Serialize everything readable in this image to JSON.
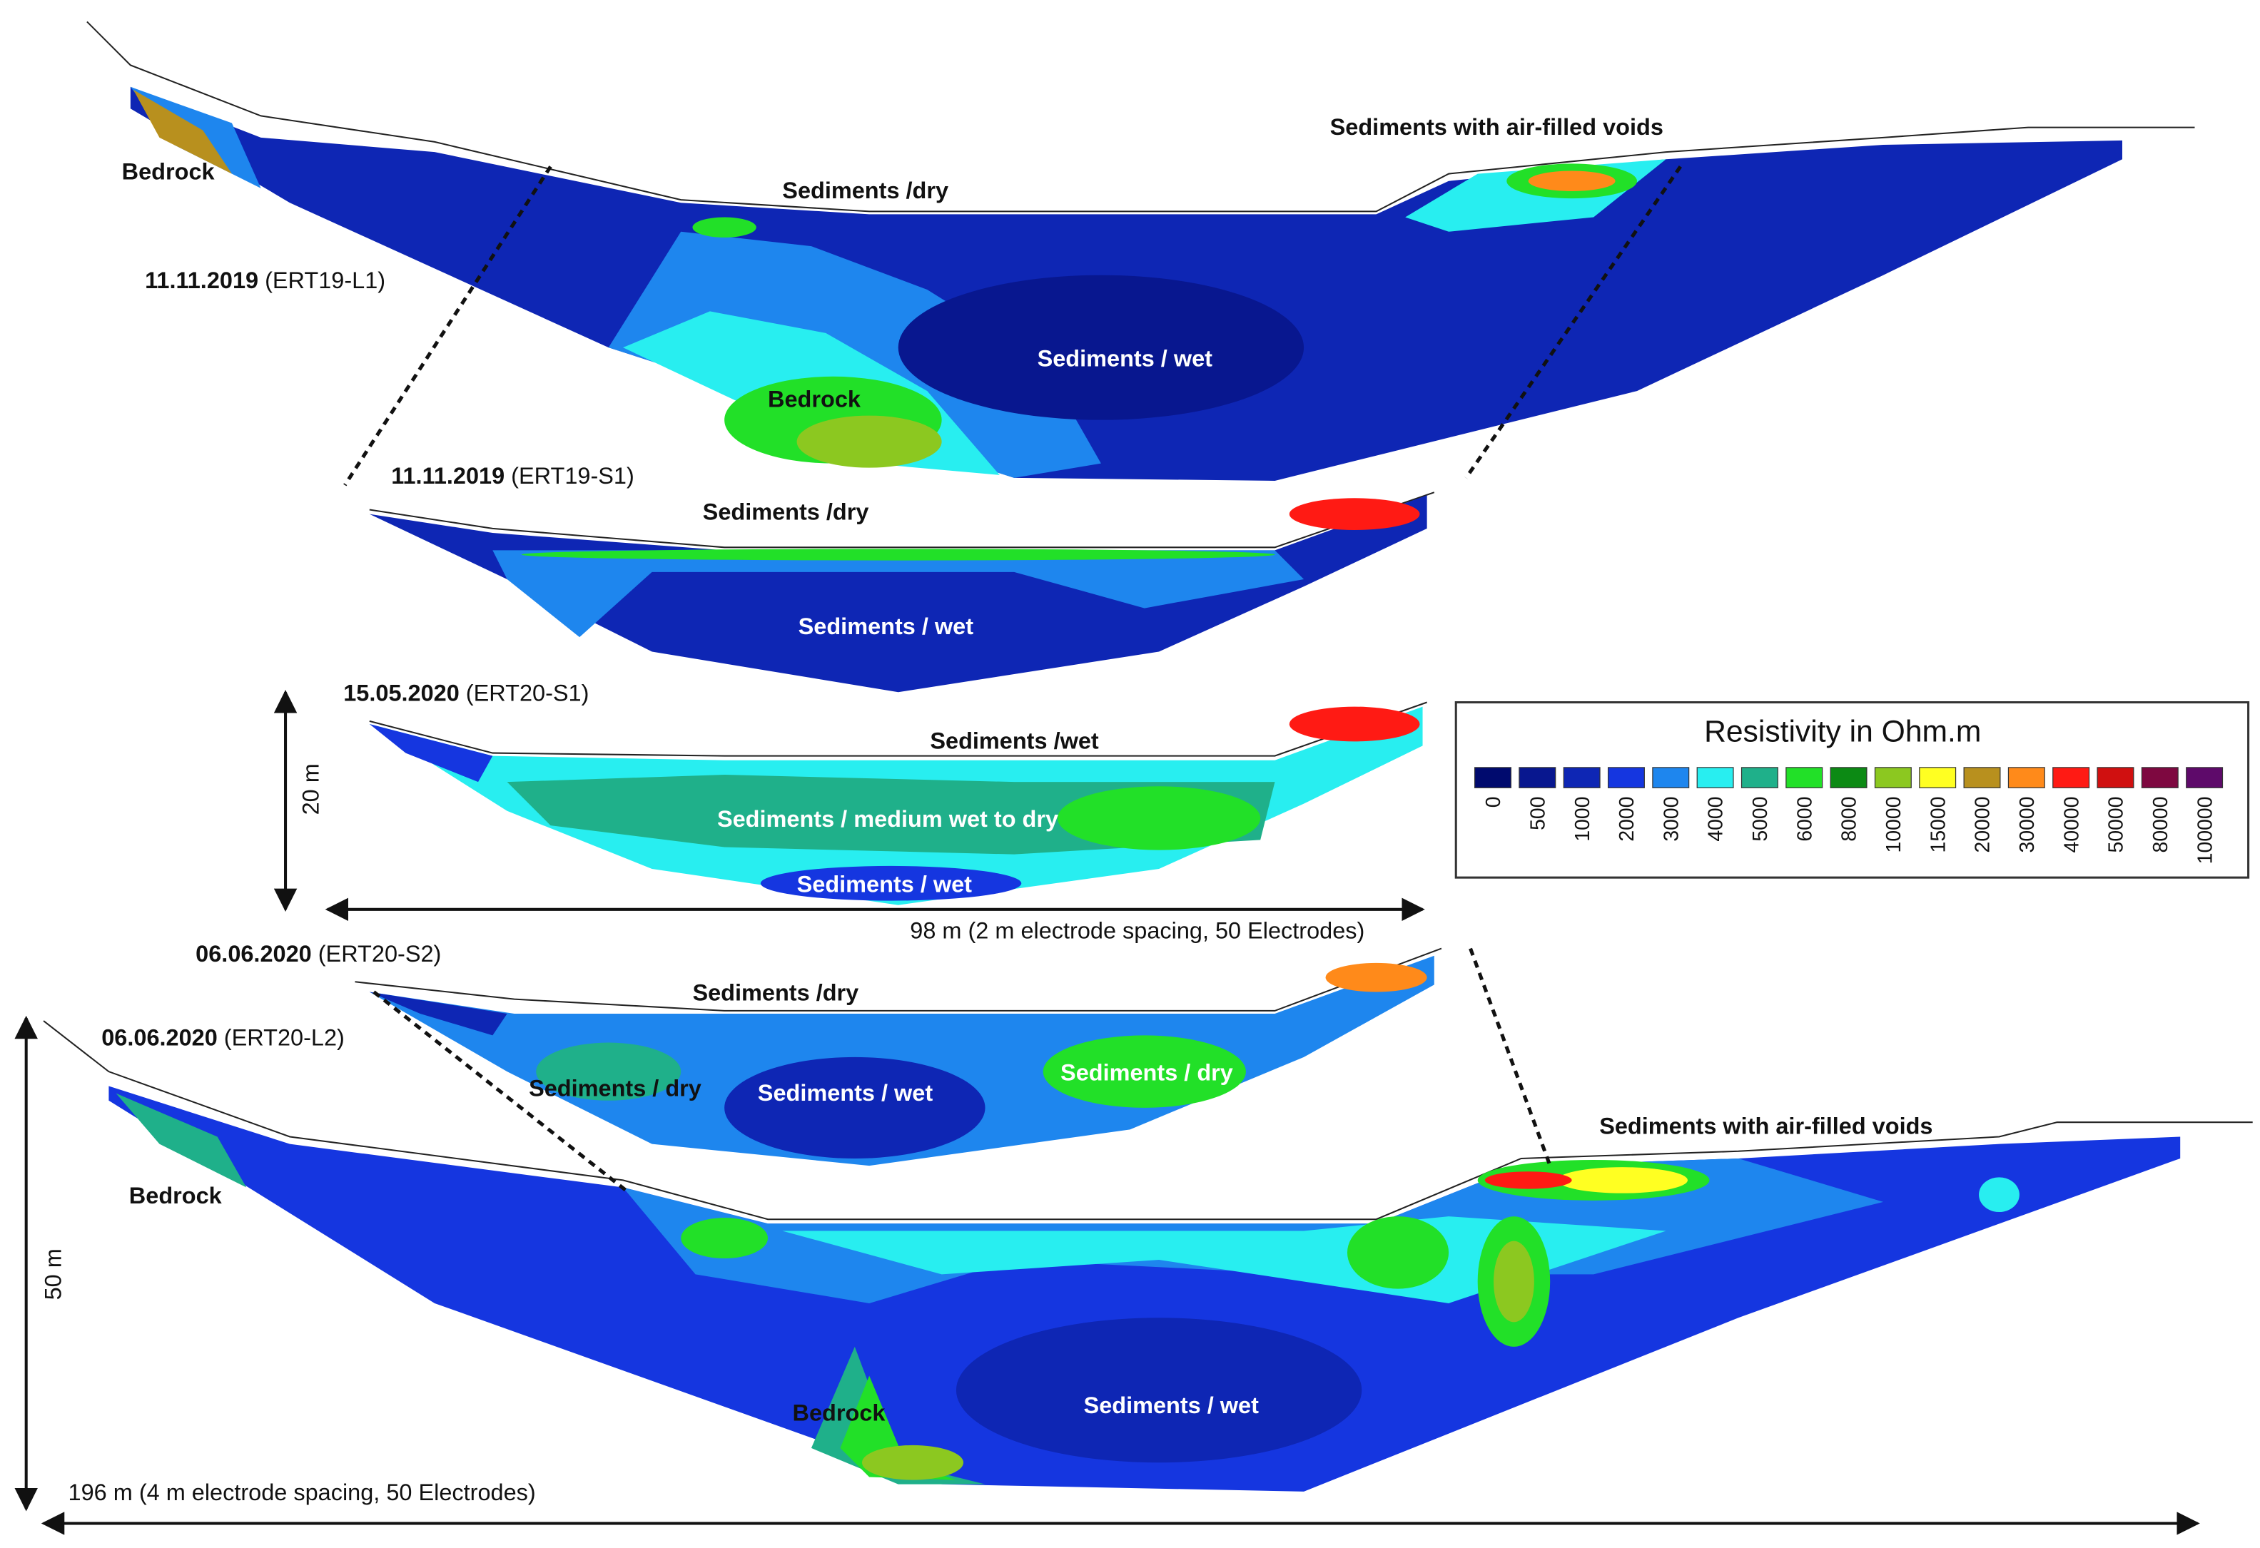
{
  "profiles": [
    {
      "date": "11.11.2019",
      "id": "(ERT19-L1)",
      "labels": [
        "Bedrock",
        "Sediments /dry",
        "Sediments with air-filled voids",
        "Sediments / wet",
        "Bedrock"
      ]
    },
    {
      "date": "11.11.2019",
      "id": "(ERT19-S1)",
      "labels": [
        "Sediments /dry",
        "Sediments / wet"
      ]
    },
    {
      "date": "15.05.2020",
      "id": "(ERT20-S1)",
      "labels": [
        "Sediments /wet",
        "Sediments / medium wet to dry",
        "Sediments / wet"
      ]
    },
    {
      "date": "06.06.2020",
      "id": "(ERT20-S2)",
      "labels": [
        "Sediments /dry",
        "Sediments / dry",
        "Sediments / wet",
        "Sediments / dry"
      ]
    },
    {
      "date": "06.06.2020",
      "id": "(ERT20-L2)",
      "labels": [
        "Sediments with air-filled voids",
        "Bedrock",
        "Bedrock",
        "Sediments / wet"
      ]
    }
  ],
  "scales": {
    "vertical_small": "20 m",
    "horizontal_small": "98 m (2 m electrode spacing, 50 Electrodes)",
    "vertical_large": "50 m",
    "horizontal_large": "196 m (4 m electrode spacing, 50 Electrodes)"
  },
  "legend": {
    "title": "Resistivity in Ohm.m",
    "entries": [
      {
        "label": "0",
        "color": "#000a6e"
      },
      {
        "label": "500",
        "color": "#08178f"
      },
      {
        "label": "1000",
        "color": "#0e26b4"
      },
      {
        "label": "2000",
        "color": "#1536e0"
      },
      {
        "label": "3000",
        "color": "#1e86ee"
      },
      {
        "label": "4000",
        "color": "#28eef0"
      },
      {
        "label": "5000",
        "color": "#1fb08a"
      },
      {
        "label": "6000",
        "color": "#22e028"
      },
      {
        "label": "8000",
        "color": "#0c8a14"
      },
      {
        "label": "10000",
        "color": "#8cc820"
      },
      {
        "label": "15000",
        "color": "#ffff22"
      },
      {
        "label": "20000",
        "color": "#b8901e"
      },
      {
        "label": "30000",
        "color": "#ff8a1a"
      },
      {
        "label": "40000",
        "color": "#ff1a14"
      },
      {
        "label": "50000",
        "color": "#d01010"
      },
      {
        "label": "80000",
        "color": "#7e0840"
      },
      {
        "label": "100000",
        "color": "#5e0a6a"
      }
    ]
  }
}
